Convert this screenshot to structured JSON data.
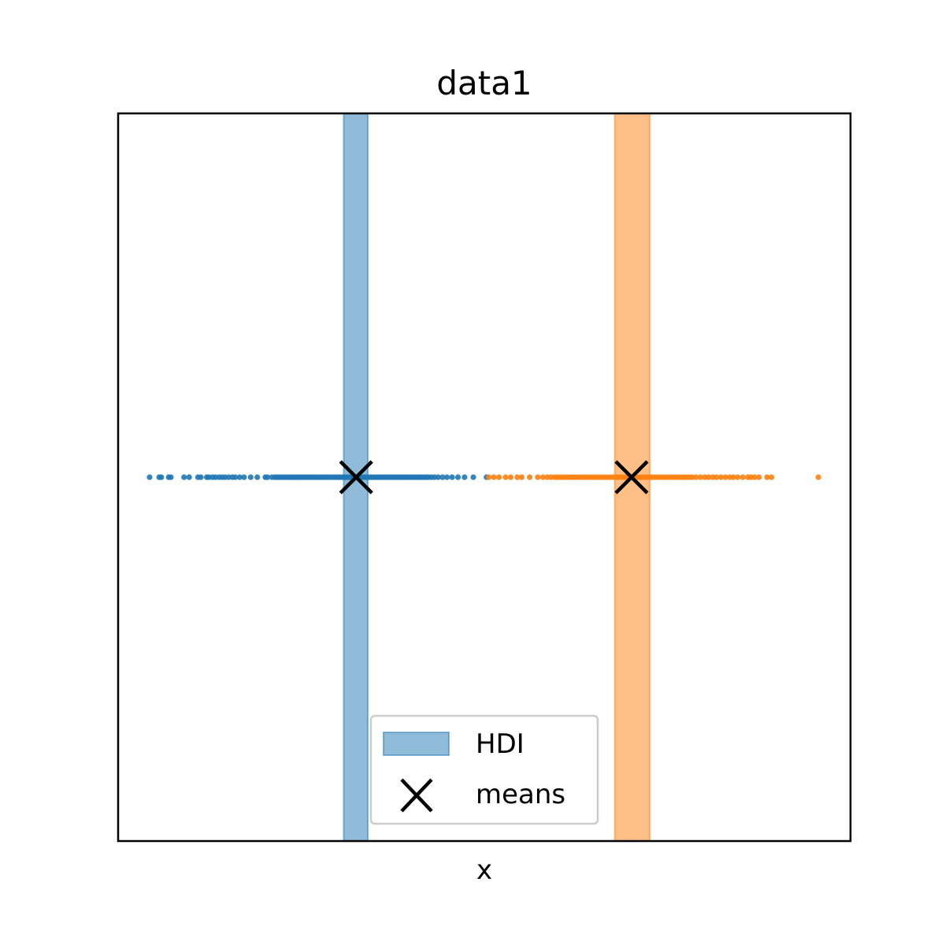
{
  "chart_data": {
    "type": "scatter",
    "title": "data1",
    "xlabel": "x",
    "ylabel": "",
    "xlim": [
      0,
      100
    ],
    "ylim": [
      -1,
      1
    ],
    "grid": false,
    "legend_position": "lower-center",
    "legend": [
      {
        "label": "HDI",
        "marker": "patch"
      },
      {
        "label": "means",
        "marker": "x"
      }
    ],
    "series": [
      {
        "color": "#1f77b4",
        "y": 0,
        "x": [
          4.3,
          5.6,
          5.9,
          6.9,
          7.2,
          9.0,
          9.7,
          10.9,
          11.3,
          12.1,
          12.4,
          12.9,
          13.3,
          13.8,
          14.2,
          14.6,
          15.1,
          15.6,
          16.0,
          16.6,
          17.2,
          18.1,
          19.0,
          20.1,
          20.4,
          21.0,
          21.4,
          21.7,
          22.0,
          22.3,
          22.6,
          22.9,
          23.2,
          23.5,
          23.8,
          24.1,
          24.4,
          24.7,
          25.0,
          25.3,
          25.6,
          25.9,
          26.2,
          26.5,
          26.8,
          27.1,
          27.4,
          27.7,
          28.0,
          28.3,
          28.6,
          28.9,
          29.2,
          29.5,
          29.8,
          30.1,
          30.4,
          30.7,
          31.0,
          31.3,
          31.6,
          31.9,
          32.2,
          32.5,
          32.8,
          33.1,
          33.4,
          33.7,
          34.0,
          34.3,
          34.6,
          34.9,
          35.2,
          35.5,
          35.8,
          36.1,
          36.4,
          36.7,
          37.0,
          37.3,
          37.6,
          37.9,
          38.2,
          38.5,
          38.8,
          39.1,
          39.4,
          39.7,
          40.0,
          40.3,
          40.6,
          40.9,
          41.2,
          41.5,
          41.8,
          42.1,
          42.4,
          42.8,
          43.2,
          43.7,
          44.3,
          44.9,
          45.6,
          46.4,
          47.3,
          48.5,
          50.3
        ],
        "mean": 32.5,
        "hdi": [
          30.8,
          34.1
        ]
      },
      {
        "color": "#ff7f0e",
        "y": 0,
        "x": [
          50.6,
          51.3,
          52.0,
          52.9,
          53.6,
          54.5,
          55.1,
          56.2,
          57.3,
          58.0,
          58.6,
          59.1,
          59.6,
          60.0,
          60.4,
          60.8,
          61.2,
          61.6,
          62.0,
          62.4,
          62.8,
          63.2,
          63.6,
          64.0,
          64.4,
          64.8,
          65.2,
          65.6,
          66.0,
          66.4,
          66.8,
          67.2,
          67.6,
          68.0,
          68.4,
          68.8,
          69.2,
          69.6,
          70.0,
          70.4,
          70.8,
          71.2,
          71.6,
          72.0,
          72.4,
          72.8,
          73.2,
          73.6,
          74.0,
          74.4,
          74.8,
          75.2,
          75.6,
          76.0,
          76.4,
          76.8,
          77.2,
          77.6,
          78.0,
          78.4,
          78.9,
          79.5,
          80.1,
          80.6,
          81.2,
          81.7,
          82.3,
          82.9,
          83.5,
          84.0,
          84.6,
          85.3,
          86.0,
          86.4,
          86.9,
          87.5,
          88.6,
          89.2,
          95.6
        ],
        "mean": 70.1,
        "hdi": [
          67.8,
          72.6
        ]
      }
    ]
  }
}
